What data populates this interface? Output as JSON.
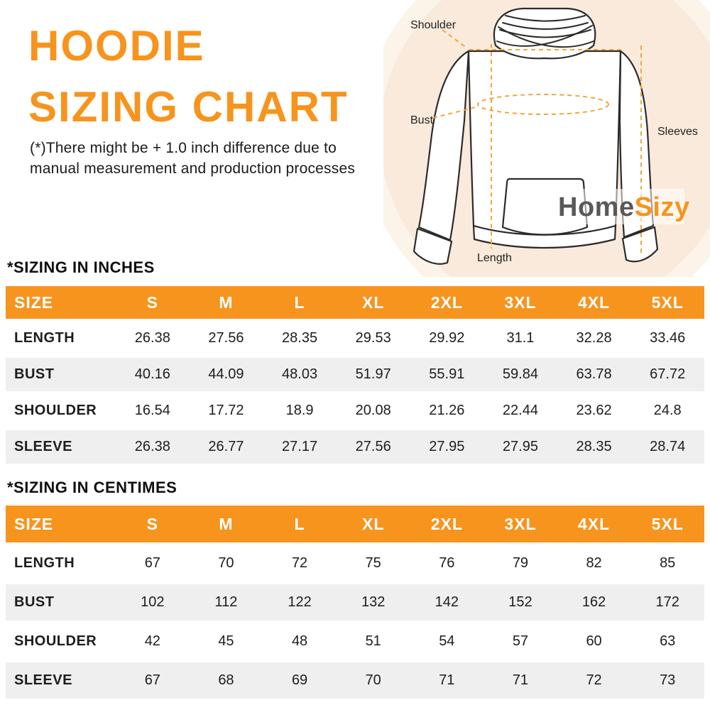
{
  "header": {
    "title_line1": "HOODIE",
    "title_line2": "SIZING CHART",
    "disclaimer_line1": "(*)There might be + 1.0 inch difference due to",
    "disclaimer_line2": "manual measurement and production processes"
  },
  "diagram": {
    "labels": {
      "shoulder": "Shoulder",
      "bust": "Bust",
      "sleeves": "Sleeves",
      "length": "Length"
    },
    "logo": {
      "part1": "Home",
      "part2": "Sizy"
    }
  },
  "colors": {
    "accent_orange": "#F7941E",
    "title_orange": "#F7941D",
    "dash_orange": "#F2A53C",
    "row_stripe_gray": "#EFEFEF",
    "logo_gray": "#58595B",
    "circle_peach": "#FAEADB",
    "text_dark": "#1D1D1B"
  },
  "tables": {
    "inches": {
      "heading": "*SIZING IN INCHES",
      "columns": [
        "SIZE",
        "S",
        "M",
        "L",
        "XL",
        "2XL",
        "3XL",
        "4XL",
        "5XL"
      ],
      "rows": [
        {
          "label": "LENGTH",
          "values": [
            "26.38",
            "27.56",
            "28.35",
            "29.53",
            "29.92",
            "31.1",
            "32.28",
            "33.46"
          ]
        },
        {
          "label": "BUST",
          "values": [
            "40.16",
            "44.09",
            "48.03",
            "51.97",
            "55.91",
            "59.84",
            "63.78",
            "67.72"
          ]
        },
        {
          "label": "SHOULDER",
          "values": [
            "16.54",
            "17.72",
            "18.9",
            "20.08",
            "21.26",
            "22.44",
            "23.62",
            "24.8"
          ]
        },
        {
          "label": "SLEEVE",
          "values": [
            "26.38",
            "26.77",
            "27.17",
            "27.56",
            "27.95",
            "27.95",
            "28.35",
            "28.74"
          ]
        }
      ]
    },
    "centimeters": {
      "heading": "*SIZING IN CENTIMES",
      "columns": [
        "SIZE",
        "S",
        "M",
        "L",
        "XL",
        "2XL",
        "3XL",
        "4XL",
        "5XL"
      ],
      "rows": [
        {
          "label": "LENGTH",
          "values": [
            "67",
            "70",
            "72",
            "75",
            "76",
            "79",
            "82",
            "85"
          ]
        },
        {
          "label": "BUST",
          "values": [
            "102",
            "112",
            "122",
            "132",
            "142",
            "152",
            "162",
            "172"
          ]
        },
        {
          "label": "SHOULDER",
          "values": [
            "42",
            "45",
            "48",
            "51",
            "54",
            "57",
            "60",
            "63"
          ]
        },
        {
          "label": "SLEEVE",
          "values": [
            "67",
            "68",
            "69",
            "70",
            "71",
            "71",
            "72",
            "73"
          ]
        }
      ]
    }
  }
}
